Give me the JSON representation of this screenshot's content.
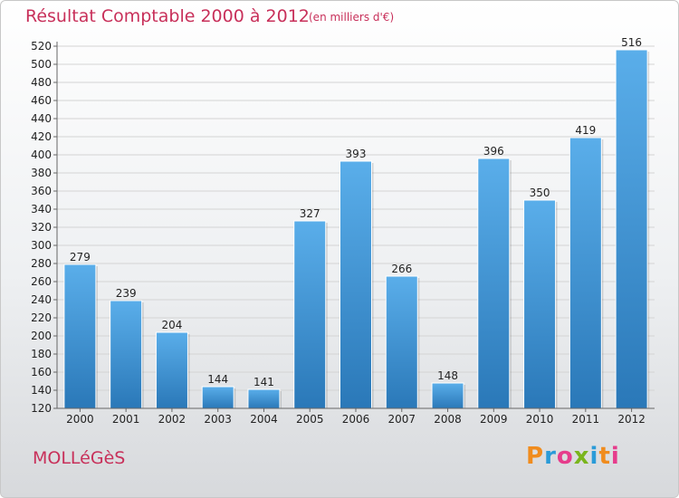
{
  "header": {
    "title": "Résultat Comptable 2000 à 2012",
    "subtitle": "(en milliers d'€)"
  },
  "footer": {
    "town": "MOLLéGèS",
    "logo": "Proxiti"
  },
  "colors": {
    "title": "#c8305a",
    "bar_top": "#5aaeea",
    "bar_bottom": "#2a78b8",
    "grid": "#d4d4d4"
  },
  "chart_data": {
    "type": "bar",
    "title": "Résultat Comptable 2000 à 2012",
    "subtitle": "(en milliers d'€)",
    "categories": [
      "2000",
      "2001",
      "2002",
      "2003",
      "2004",
      "2005",
      "2006",
      "2007",
      "2008",
      "2009",
      "2010",
      "2011",
      "2012"
    ],
    "values": [
      279,
      239,
      204,
      144,
      141,
      327,
      393,
      266,
      148,
      396,
      350,
      419,
      516
    ],
    "ylim": [
      120,
      520
    ],
    "yticks": [
      120,
      140,
      160,
      180,
      200,
      220,
      240,
      260,
      280,
      300,
      320,
      340,
      360,
      380,
      400,
      420,
      440,
      460,
      480,
      500,
      520
    ],
    "grid": true,
    "data_labels": true
  }
}
